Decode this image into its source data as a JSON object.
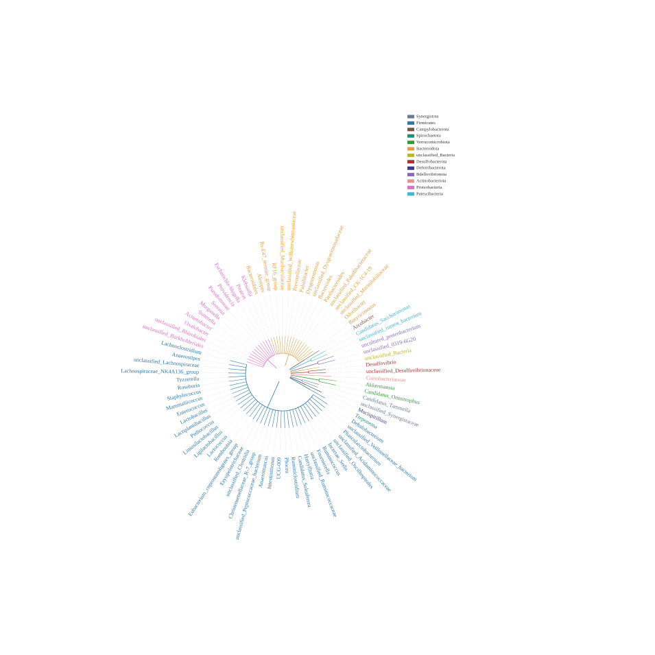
{
  "legend": [
    {
      "label": "Synergistota",
      "color": "#6b7d8f"
    },
    {
      "label": "Firmicutes",
      "color": "#2e78ad"
    },
    {
      "label": "Campylobacterota",
      "color": "#7a5545"
    },
    {
      "label": "Spirochaetota",
      "color": "#2a8a7a"
    },
    {
      "label": "Verrucomicrobiota",
      "color": "#3a9a3a"
    },
    {
      "label": "Bacteroidota",
      "color": "#e0a040"
    },
    {
      "label": "unclassified_Bacteria",
      "color": "#b8b830"
    },
    {
      "label": "Desulfobacterota",
      "color": "#b03030"
    },
    {
      "label": "Deferribacterota",
      "color": "#3a3a8a"
    },
    {
      "label": "Bdellovibrionota",
      "color": "#8a6ab8"
    },
    {
      "label": "Actinobacteriota",
      "color": "#e89090"
    },
    {
      "label": "Proteobacteria",
      "color": "#e070c0"
    },
    {
      "label": "Patescibacteria",
      "color": "#40b8d0"
    }
  ],
  "tips": [
    {
      "color": "#e0a040",
      "labels": [
        "Bacteroidales",
        "Alistipes",
        "Rs-E47_termite_group",
        "RF16_group",
        "unclassified_Muribaculaceae",
        "unclassified_Williamwhitmaniaceae",
        "Prevotellaceae",
        "Paludibacter",
        "Dysgonomonas",
        "unclassified_Dysgonomonadaceae",
        "Bacteroides",
        "Parabacteroides",
        "unclassified_Paludibacteraceae",
        "unclassified_CK-1C4-19",
        "unclassified_Marinilabiliaceae",
        "Odoribacter",
        "Butyricimonas"
      ]
    },
    {
      "color": "#7a5545",
      "labels": [
        "Arcobacter"
      ]
    },
    {
      "color": "#40b8d0",
      "labels": [
        "Candidatus_Saccharimonas",
        "unclassified_rumen_bacterium"
      ]
    },
    {
      "color": "#8a6ab8",
      "labels": [
        "uncultured_proteobacterium",
        "unclassified_0319-6G20"
      ]
    },
    {
      "color": "#b8b830",
      "labels": [
        "unclassified_Bacteria"
      ]
    },
    {
      "color": "#b03030",
      "labels": [
        "Desulfovibrio",
        "unclassified_Desulfovibrionaceae"
      ]
    },
    {
      "color": "#e89090",
      "labels": [
        "Coriobacteriaceae"
      ]
    },
    {
      "color": "#3a9a3a",
      "labels": [
        "Akkermansia",
        "Candidatus_Omnitrophus"
      ]
    },
    {
      "color": "#6b7d8f",
      "labels": [
        "Candidatus_Tammella",
        "unclassified_Synergistaceae"
      ]
    },
    {
      "color": "#3a3a8a",
      "labels": [
        "Mucispirillum"
      ]
    },
    {
      "color": "#2a8a7a",
      "labels": [
        "Treponema"
      ]
    },
    {
      "color": "#2e78ad",
      "labels": [
        "Dehalobacterium",
        "unclassified_Veillonellaceae_bacterium",
        "Phascolarctobacterium",
        "unclassified_Acidaminococcaceae",
        "unclassified_Oscillospirales",
        "Incertae_Sedis",
        "Ruminococcus",
        "Fournierella",
        "unclassified_Ruminococcaceae",
        "Harryflintia",
        "Candidatus_Soleaferrea",
        "Ruminiclostridium",
        "Phocea",
        "UCG-009",
        "Intestinimonas",
        "Anaerotruncus",
        "unclassified_Peptococcaceae_bacterium",
        "Christensenellaceae_R-7_group",
        "unclassified_Clostridia",
        "Erysipelotrichaceae",
        "Eubacterium_coprostanoligenes_group",
        "Romboutsia",
        "Lactococcus",
        "Ligilactobacillus",
        "Limosilactobacillus",
        "Pediococcus",
        "Lactiplantibacillus",
        "Lactobacillus",
        "Enterococcus",
        "Mammaliicoccus",
        "Staphylococcus",
        "Roseburia",
        "Tyzzerella",
        "Lachnospiraceae_NK4A136_group",
        "unclassified_Lachnospiraceae",
        "Anaerostipes",
        "Lachnoclostridium"
      ]
    },
    {
      "color": "#e070c0",
      "labels": [
        "unclassified_Burkholderiales",
        "unclassified_Rhizobiales",
        "Oxalobacter",
        "Acinetobacter",
        "Sutterella",
        "Morganella",
        "Serratia",
        "Pseudomonas",
        "Providencia",
        "Escherichia-Shigella",
        "Proteus",
        "Klebsiella"
      ]
    }
  ]
}
